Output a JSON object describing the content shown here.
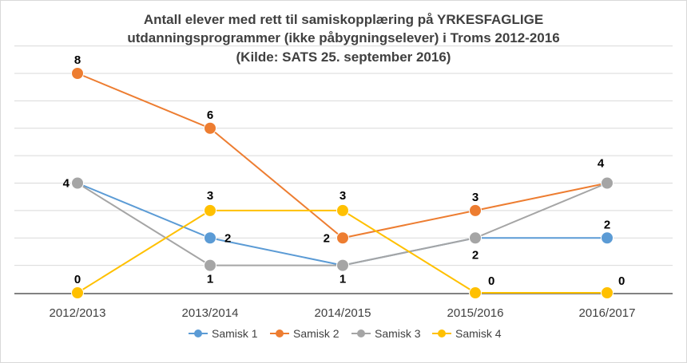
{
  "chart_data": {
    "type": "line",
    "title_lines": [
      "Antall elever med rett til samiskopplæring på YRKESFAGLIGE",
      "utdanningsprogrammer (ikke påbygningselever) i Troms 2012-2016",
      "(Kilde: SATS 25. september 2016)"
    ],
    "categories": [
      "2012/2013",
      "2013/2014",
      "2014/2015",
      "2015/2016",
      "2016/2017"
    ],
    "ylim": [
      0,
      8
    ],
    "grid": true,
    "legend_position": "bottom",
    "series": [
      {
        "name": "Samisk 1",
        "color": "#5B9BD5",
        "values": [
          4,
          2,
          1,
          2,
          2
        ],
        "labels": [
          "",
          "2",
          "",
          "",
          "2"
        ]
      },
      {
        "name": "Samisk 2",
        "color": "#ED7D31",
        "values": [
          8,
          6,
          2,
          3,
          4
        ],
        "labels": [
          "8",
          "6",
          "2",
          "3",
          ""
        ]
      },
      {
        "name": "Samisk 3",
        "color": "#A5A5A5",
        "values": [
          4,
          1,
          1,
          2,
          4
        ],
        "labels": [
          "4",
          "1",
          "1",
          "2",
          "4"
        ]
      },
      {
        "name": "Samisk 4",
        "color": "#FFC000",
        "values": [
          0,
          3,
          3,
          0,
          0
        ],
        "labels": [
          "0",
          "3",
          "3",
          "0",
          "0"
        ]
      }
    ]
  }
}
